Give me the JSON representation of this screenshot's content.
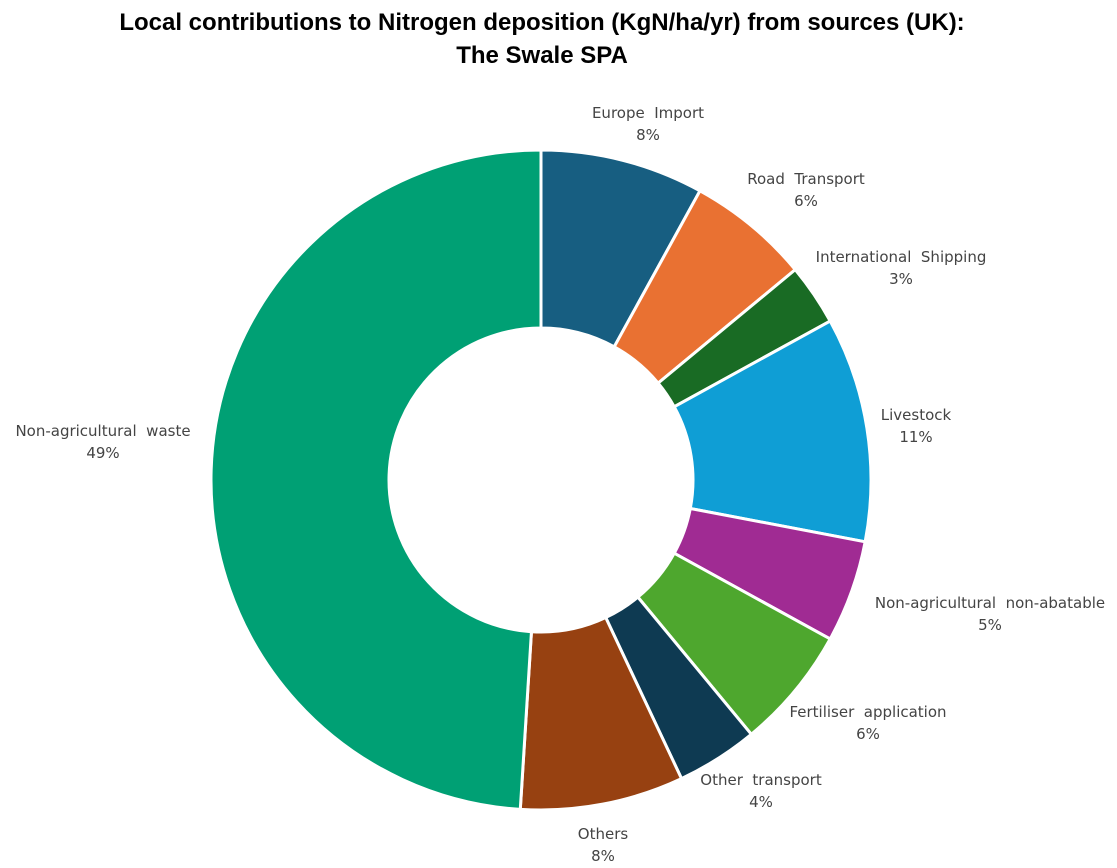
{
  "chart_data": {
    "type": "pie",
    "donut": true,
    "title_line1": "Local contributions to Nitrogen deposition (KgN/ha/yr) from sources (UK):",
    "title_line2": "The Swale SPA",
    "slices": [
      {
        "label": "Europe  Import",
        "value": 8,
        "pct_label": "8%",
        "color": "#175e81"
      },
      {
        "label": "Road  Transport",
        "value": 6,
        "pct_label": "6%",
        "color": "#e97132"
      },
      {
        "label": "International  Shipping",
        "value": 3,
        "pct_label": "3%",
        "color": "#196b24"
      },
      {
        "label": "Livestock",
        "value": 11,
        "pct_label": "11%",
        "color": "#0f9ed5"
      },
      {
        "label": "Non-agricultural  non-abatable",
        "value": 5,
        "pct_label": "5%",
        "color": "#a02b93"
      },
      {
        "label": "Fertiliser  application",
        "value": 6,
        "pct_label": "6%",
        "color": "#4ea72e"
      },
      {
        "label": "Other  transport",
        "value": 4,
        "pct_label": "4%",
        "color": "#0e3a52"
      },
      {
        "label": "Others",
        "value": 8,
        "pct_label": "8%",
        "color": "#974111"
      },
      {
        "label": "Non-agricultural  waste",
        "value": 49,
        "pct_label": "49%",
        "color": "#00a074"
      }
    ]
  }
}
